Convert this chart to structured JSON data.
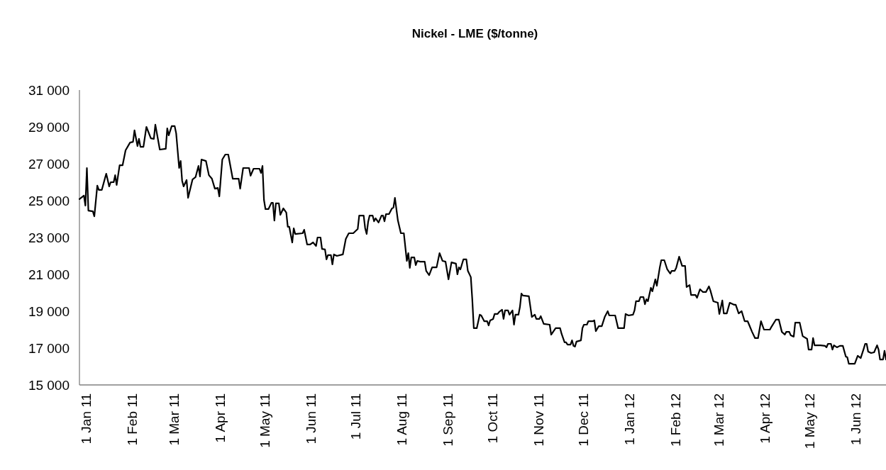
{
  "chart_data": {
    "type": "line",
    "title": "Nickel - LME ($/tonne)",
    "xlim": [
      "2010-12-28",
      "2012-06-22"
    ],
    "xticks": [
      {
        "value": "2011-01-01",
        "label": "1 Jan 11"
      },
      {
        "value": "2011-02-01",
        "label": "1 Feb 11"
      },
      {
        "value": "2011-03-01",
        "label": "1 Mar 11"
      },
      {
        "value": "2011-04-01",
        "label": "1 Apr 11"
      },
      {
        "value": "2011-05-01",
        "label": "1 May 11"
      },
      {
        "value": "2011-06-01",
        "label": "1 Jun 11"
      },
      {
        "value": "2011-07-01",
        "label": "1 Jul 11"
      },
      {
        "value": "2011-08-01",
        "label": "1 Aug 11"
      },
      {
        "value": "2011-09-01",
        "label": "1 Sep 11"
      },
      {
        "value": "2011-10-01",
        "label": "1 Oct 11"
      },
      {
        "value": "2011-11-01",
        "label": "1 Nov 11"
      },
      {
        "value": "2011-12-01",
        "label": "1 Dec 11"
      },
      {
        "value": "2012-01-01",
        "label": "1 Jan 12"
      },
      {
        "value": "2012-02-01",
        "label": "1 Feb 12"
      },
      {
        "value": "2012-03-01",
        "label": "1 Mar 12"
      },
      {
        "value": "2012-04-01",
        "label": "1 Apr 12"
      },
      {
        "value": "2012-05-01",
        "label": "1 May 12"
      },
      {
        "value": "2012-06-01",
        "label": "1 Jun 12"
      }
    ],
    "ylim": [
      15000,
      31000
    ],
    "yticks": [
      {
        "value": 15000,
        "label": "15 000"
      },
      {
        "value": 17000,
        "label": "17 000"
      },
      {
        "value": 19000,
        "label": "19 000"
      },
      {
        "value": 21000,
        "label": "21 000"
      },
      {
        "value": 23000,
        "label": "23 000"
      },
      {
        "value": 25000,
        "label": "25 000"
      },
      {
        "value": 27000,
        "label": "27 000"
      },
      {
        "value": 29000,
        "label": "29 000"
      },
      {
        "value": 31000,
        "label": "31 000"
      }
    ],
    "marker": "none",
    "line_style": "solid",
    "series": [
      {
        "color": "#000000",
        "x": [
          "2010-12-28",
          "2010-12-31",
          "2011-01-01",
          "2011-01-02",
          "2011-01-03",
          "2011-01-06",
          "2011-01-07",
          "2011-01-09",
          "2011-01-10",
          "2011-01-12",
          "2011-01-15",
          "2011-01-17",
          "2011-01-18",
          "2011-01-20",
          "2011-01-21",
          "2011-01-22",
          "2011-01-24",
          "2011-01-26",
          "2011-01-28",
          "2011-01-31",
          "2011-02-02",
          "2011-02-03",
          "2011-02-05",
          "2011-02-06",
          "2011-02-07",
          "2011-02-09",
          "2011-02-11",
          "2011-02-14",
          "2011-02-16",
          "2011-02-17",
          "2011-02-20",
          "2011-02-24",
          "2011-02-25",
          "2011-02-26",
          "2011-02-28",
          "2011-03-02",
          "2011-03-03",
          "2011-03-05",
          "2011-03-06",
          "2011-03-07",
          "2011-03-08",
          "2011-03-10",
          "2011-03-11",
          "2011-03-14",
          "2011-03-16",
          "2011-03-18",
          "2011-03-19",
          "2011-03-20",
          "2011-03-23",
          "2011-03-25",
          "2011-03-27",
          "2011-03-29",
          "2011-03-31",
          "2011-04-01",
          "2011-04-03",
          "2011-04-05",
          "2011-04-07",
          "2011-04-10",
          "2011-04-14",
          "2011-04-15",
          "2011-04-17",
          "2011-04-21",
          "2011-04-22",
          "2011-04-24",
          "2011-04-28",
          "2011-04-29",
          "2011-04-30",
          "2011-05-01",
          "2011-05-02",
          "2011-05-04",
          "2011-05-06",
          "2011-05-07",
          "2011-05-08",
          "2011-05-09",
          "2011-05-11",
          "2011-05-12",
          "2011-05-14",
          "2011-05-16",
          "2011-05-17",
          "2011-05-18",
          "2011-05-20",
          "2011-05-21",
          "2011-05-22",
          "2011-05-27",
          "2011-05-28",
          "2011-05-30",
          "2011-06-01",
          "2011-06-03",
          "2011-06-05",
          "2011-06-06",
          "2011-06-08",
          "2011-06-09",
          "2011-06-11",
          "2011-06-12",
          "2011-06-13",
          "2011-06-15",
          "2011-06-16",
          "2011-06-17",
          "2011-06-19",
          "2011-06-23",
          "2011-06-25",
          "2011-06-27",
          "2011-06-30",
          "2011-07-03",
          "2011-07-04",
          "2011-07-07",
          "2011-07-08",
          "2011-07-09",
          "2011-07-10",
          "2011-07-11",
          "2011-07-13",
          "2011-07-14",
          "2011-07-15",
          "2011-07-17",
          "2011-07-19",
          "2011-07-20",
          "2011-07-21",
          "2011-07-22",
          "2011-07-24",
          "2011-07-26",
          "2011-07-27",
          "2011-07-28",
          "2011-07-30",
          "2011-08-01",
          "2011-08-03",
          "2011-08-05",
          "2011-08-06",
          "2011-08-07",
          "2011-08-08",
          "2011-08-10",
          "2011-08-11",
          "2011-08-12",
          "2011-08-14",
          "2011-08-17",
          "2011-08-18",
          "2011-08-20",
          "2011-08-22",
          "2011-08-25",
          "2011-08-27",
          "2011-08-29",
          "2011-08-31",
          "2011-09-02",
          "2011-09-04",
          "2011-09-07",
          "2011-09-08",
          "2011-09-09",
          "2011-09-10",
          "2011-09-12",
          "2011-09-14",
          "2011-09-15",
          "2011-09-17",
          "2011-09-18",
          "2011-09-19",
          "2011-09-21",
          "2011-09-23",
          "2011-09-24",
          "2011-09-26",
          "2011-09-28",
          "2011-09-29",
          "2011-09-30",
          "2011-10-02",
          "2011-10-03",
          "2011-10-05",
          "2011-10-06",
          "2011-10-08",
          "2011-10-09",
          "2011-10-10",
          "2011-10-12",
          "2011-10-13",
          "2011-10-15",
          "2011-10-16",
          "2011-10-17",
          "2011-10-19",
          "2011-10-20",
          "2011-10-21",
          "2011-10-22",
          "2011-10-26",
          "2011-10-28",
          "2011-10-30",
          "2011-10-31",
          "2011-11-02",
          "2011-11-03",
          "2011-11-05",
          "2011-11-09",
          "2011-11-10",
          "2011-11-13",
          "2011-11-16",
          "2011-11-17",
          "2011-11-19",
          "2011-11-20",
          "2011-11-21",
          "2011-11-23",
          "2011-11-24",
          "2011-11-25",
          "2011-11-26",
          "2011-11-27",
          "2011-11-30",
          "2011-12-01",
          "2011-12-02",
          "2011-12-04",
          "2011-12-05",
          "2011-12-08",
          "2011-12-09",
          "2011-12-10",
          "2011-12-12",
          "2011-12-14",
          "2011-12-16",
          "2011-12-18",
          "2011-12-19",
          "2011-12-23",
          "2011-12-25",
          "2011-12-29",
          "2011-12-30",
          "2012-01-01",
          "2012-01-04",
          "2012-01-05",
          "2012-01-06",
          "2012-01-08",
          "2012-01-09",
          "2012-01-11",
          "2012-01-12",
          "2012-01-13",
          "2012-01-14",
          "2012-01-16",
          "2012-01-17",
          "2012-01-19",
          "2012-01-20",
          "2012-01-22",
          "2012-01-23",
          "2012-01-25",
          "2012-01-27",
          "2012-01-29",
          "2012-01-30",
          "2012-02-01",
          "2012-02-02",
          "2012-02-04",
          "2012-02-06",
          "2012-02-08",
          "2012-02-09",
          "2012-02-11",
          "2012-02-12",
          "2012-02-15",
          "2012-02-16",
          "2012-02-18",
          "2012-02-20",
          "2012-02-22",
          "2012-02-24",
          "2012-02-25",
          "2012-02-27",
          "2012-03-01",
          "2012-03-02",
          "2012-03-04",
          "2012-03-05",
          "2012-03-07",
          "2012-03-09",
          "2012-03-12",
          "2012-03-13",
          "2012-03-15",
          "2012-03-17",
          "2012-03-19",
          "2012-03-21",
          "2012-03-22",
          "2012-03-24",
          "2012-03-26",
          "2012-03-28",
          "2012-03-30",
          "2012-04-01",
          "2012-04-05",
          "2012-04-06",
          "2012-04-09",
          "2012-04-11",
          "2012-04-13",
          "2012-04-15",
          "2012-04-16",
          "2012-04-18",
          "2012-04-19",
          "2012-04-21",
          "2012-04-22",
          "2012-04-25",
          "2012-04-27",
          "2012-04-30",
          "2012-05-01",
          "2012-05-03",
          "2012-05-04",
          "2012-05-05",
          "2012-05-09",
          "2012-05-12",
          "2012-05-13",
          "2012-05-14",
          "2012-05-16",
          "2012-05-17",
          "2012-05-18",
          "2012-05-20",
          "2012-05-22",
          "2012-05-24",
          "2012-05-26",
          "2012-05-27",
          "2012-05-28",
          "2012-06-01",
          "2012-06-03",
          "2012-06-05",
          "2012-06-07",
          "2012-06-08",
          "2012-06-09",
          "2012-06-10",
          "2012-06-12",
          "2012-06-14",
          "2012-06-16",
          "2012-06-17",
          "2012-06-18",
          "2012-06-20",
          "2012-06-21",
          "2012-06-22"
        ],
        "values": [
          25080,
          25270,
          24730,
          26770,
          24460,
          24420,
          24150,
          25810,
          25580,
          25580,
          26460,
          25770,
          26000,
          26000,
          26380,
          25850,
          26920,
          26920,
          27730,
          28150,
          28190,
          28810,
          27960,
          28350,
          27920,
          27920,
          29000,
          28380,
          28350,
          29120,
          27770,
          27810,
          28920,
          28540,
          29040,
          29040,
          28650,
          26770,
          27150,
          26080,
          25770,
          26120,
          25150,
          26150,
          26270,
          26880,
          26310,
          27230,
          27150,
          26380,
          26190,
          25650,
          25690,
          25230,
          27230,
          27500,
          27500,
          26190,
          26190,
          25650,
          26770,
          26770,
          26350,
          26730,
          26730,
          26500,
          26880,
          25040,
          24540,
          24540,
          24880,
          24880,
          23920,
          24850,
          24850,
          24230,
          24580,
          24350,
          23580,
          23580,
          22730,
          23500,
          23190,
          23230,
          23420,
          22620,
          22620,
          22730,
          22540,
          23000,
          23000,
          22380,
          22350,
          21810,
          22040,
          22040,
          21540,
          22080,
          22000,
          22080,
          22920,
          23230,
          23230,
          23460,
          24190,
          24190,
          23500,
          23190,
          23850,
          24190,
          24190,
          23880,
          24040,
          23810,
          24190,
          24190,
          23880,
          24270,
          24270,
          24580,
          24620,
          25150,
          23920,
          23230,
          23230,
          21730,
          22150,
          21350,
          21920,
          21920,
          21500,
          21730,
          21690,
          21690,
          21190,
          20960,
          21380,
          21380,
          22150,
          21730,
          21690,
          20730,
          21650,
          21580,
          21000,
          21380,
          21270,
          21810,
          21810,
          21190,
          20850,
          19620,
          18080,
          18080,
          18810,
          18770,
          18460,
          18460,
          18230,
          18500,
          18580,
          18850,
          18850,
          18960,
          19080,
          18580,
          19040,
          19040,
          18810,
          19040,
          18270,
          18810,
          18810,
          19230,
          19960,
          19850,
          19810,
          18690,
          18810,
          18580,
          18580,
          18730,
          18310,
          18270,
          17730,
          18080,
          18080,
          17770,
          17310,
          17310,
          17190,
          17190,
          17420,
          17120,
          17080,
          17350,
          17420,
          18080,
          18270,
          18270,
          18460,
          18460,
          18500,
          17920,
          18190,
          18190,
          18690,
          19000,
          18770,
          18770,
          18080,
          18080,
          18850,
          18770,
          18810,
          19040,
          19540,
          19540,
          19770,
          19770,
          19380,
          19650,
          19540,
          20270,
          20080,
          20730,
          20380,
          21380,
          21770,
          21770,
          21270,
          21040,
          21190,
          21190,
          21350,
          21960,
          21460,
          21460,
          20310,
          20420,
          19880,
          19880,
          19730,
          20190,
          20040,
          20040,
          20350,
          20120,
          19540,
          19460,
          18850,
          19580,
          18880,
          18880,
          19460,
          19350,
          19350,
          18880,
          19000,
          18460,
          18460,
          18270,
          17880,
          17540,
          17540,
          18460,
          18000,
          18000,
          18150,
          18540,
          18540,
          17880,
          17730,
          17880,
          17880,
          17690,
          17620,
          18380,
          18380,
          17650,
          17500,
          16920,
          16920,
          17540,
          17150,
          17150,
          17120,
          17040,
          17230,
          17230,
          16920,
          17150,
          17040,
          17120,
          17120,
          16540,
          16500,
          16150,
          16150,
          16580,
          16460,
          16960,
          17230,
          17230,
          16810,
          16730,
          16770,
          17150,
          16920,
          16380,
          16380,
          16850,
          16380
        ]
      }
    ]
  }
}
